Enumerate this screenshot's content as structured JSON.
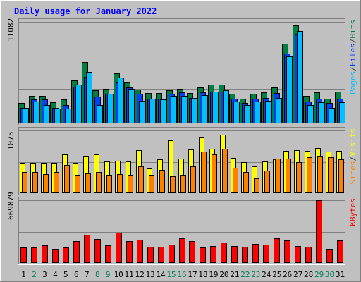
{
  "chart_data": {
    "type": "bar",
    "title": "Daily usage for January 2022",
    "x": [
      "1",
      "2",
      "3",
      "4",
      "5",
      "6",
      "7",
      "8",
      "9",
      "10",
      "11",
      "12",
      "13",
      "14",
      "15",
      "16",
      "17",
      "18",
      "19",
      "20",
      "21",
      "22",
      "23",
      "24",
      "25",
      "26",
      "27",
      "28",
      "29",
      "30",
      "31"
    ],
    "weekend_days": [
      "2",
      "8",
      "9",
      "15",
      "16",
      "22",
      "23",
      "29",
      "30"
    ],
    "panels": [
      {
        "name": "pages-files-hits",
        "max_label": "11082",
        "ymax": 11082,
        "legend": [
          "Pages",
          "/",
          "Files",
          "/",
          "Hits"
        ],
        "legend_colors": [
          "#00c0ff",
          "#404040",
          "#0040ff",
          "#404040",
          "#008040"
        ],
        "series": [
          {
            "name": "Hits",
            "color": "#008040",
            "values": [
              2200,
              3000,
              3000,
              2300,
              2600,
              4700,
              6700,
              3600,
              3800,
              5500,
              4500,
              3700,
              3300,
              3300,
              3600,
              3800,
              3300,
              3900,
              4200,
              4200,
              3200,
              2700,
              3200,
              3400,
              3900,
              8700,
              10700,
              3000,
              3400,
              2700,
              3500
            ]
          },
          {
            "name": "Files",
            "color": "#0040ff",
            "values": [
              1700,
              2600,
              2600,
              1700,
              2000,
              4000,
              5100,
              2900,
              3200,
              4500,
              3900,
              3200,
              2700,
              2700,
              3200,
              3400,
              2800,
              3400,
              3500,
              3500,
              2700,
              2200,
              2700,
              2800,
              3300,
              7600,
              9800,
              2400,
              2700,
              2200,
              2700
            ]
          },
          {
            "name": "Pages",
            "color": "#00c0ff",
            "values": [
              1700,
              2400,
              2000,
              1600,
              1600,
              4200,
              5600,
              2000,
              3200,
              5000,
              3800,
              2500,
              2700,
              2600,
              3000,
              3000,
              2800,
              3100,
              3500,
              3600,
              2400,
              2000,
              2400,
              2500,
              2800,
              7300,
              10100,
              2000,
              2300,
              1700,
              2300
            ]
          }
        ]
      },
      {
        "name": "sites-visits",
        "max_label": "1075",
        "ymax": 1075,
        "legend": [
          "Sites",
          "/",
          "Visits"
        ],
        "legend_colors": [
          "#ff8000",
          "#404040",
          "#ffff00"
        ],
        "series": [
          {
            "name": "Visits",
            "color": "#ffff00",
            "values": [
              520,
              520,
              520,
              520,
              660,
              520,
              640,
              660,
              540,
              560,
              540,
              740,
              420,
              580,
              900,
              590,
              750,
              950,
              760,
              1000,
              600,
              530,
              460,
              540,
              580,
              720,
              740,
              720,
              770,
              710,
              720
            ]
          },
          {
            "name": "Sites",
            "color": "#ff8000",
            "values": [
              360,
              360,
              330,
              360,
              480,
              310,
              340,
              360,
              310,
              330,
              320,
              460,
              320,
              400,
              290,
              320,
              460,
              710,
              660,
              760,
              440,
              360,
              250,
              390,
              590,
              590,
              530,
              620,
              640,
              620,
              580
            ]
          }
        ]
      },
      {
        "name": "kbytes",
        "max_label": "669879",
        "ymax": 669879,
        "legend": [
          "KBytes"
        ],
        "legend_colors": [
          "#ff0000"
        ],
        "series": [
          {
            "name": "KBytes",
            "color": "#ff0000",
            "values": [
              165000,
              165000,
              190000,
              150000,
              165000,
              230000,
              300000,
              255000,
              190000,
              320000,
              235000,
              245000,
              175000,
              175000,
              195000,
              260000,
              230000,
              165000,
              180000,
              220000,
              180000,
              170000,
              200000,
              195000,
              260000,
              240000,
              180000,
              175000,
              669879,
              150000,
              240000
            ]
          }
        ]
      }
    ]
  }
}
